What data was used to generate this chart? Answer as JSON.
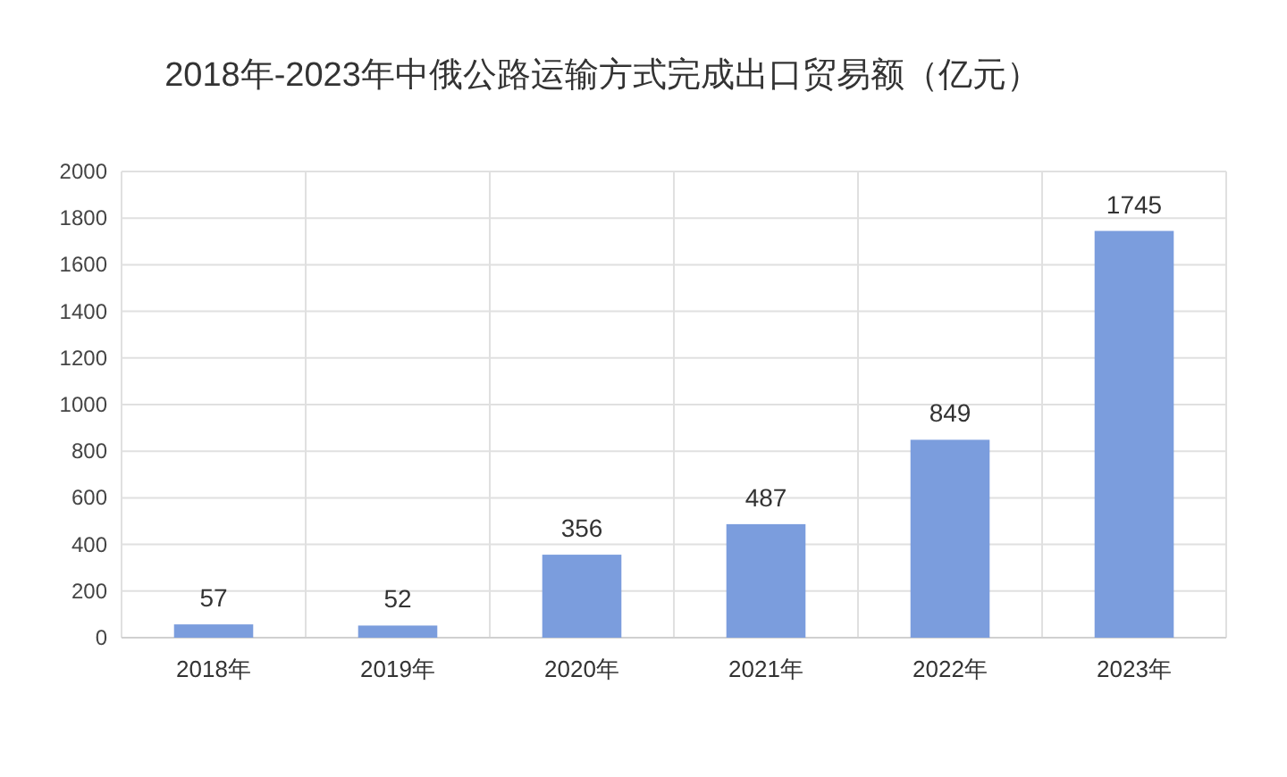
{
  "chart_data": {
    "type": "bar",
    "title": "2018年-2023年中俄公路运输方式完成出口贸易额（亿元）",
    "categories": [
      "2018年",
      "2019年",
      "2020年",
      "2021年",
      "2022年",
      "2023年"
    ],
    "values": [
      57,
      52,
      356,
      487,
      849,
      1745
    ],
    "color": "#7b9ddd",
    "ylim": [
      0,
      2000
    ],
    "yticks": [
      0,
      200,
      400,
      600,
      800,
      1000,
      1200,
      1400,
      1600,
      1800,
      2000
    ],
    "grid": true,
    "data_labels": true
  }
}
